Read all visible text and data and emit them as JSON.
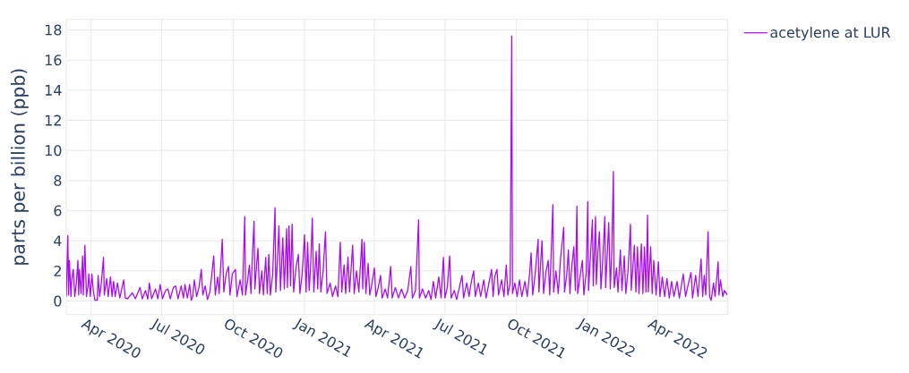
{
  "chart_data": {
    "type": "line",
    "ylabel": "parts per billion (ppb)",
    "x": [
      "2020-02-29",
      "2020-03-02",
      "2020-03-03",
      "2020-03-04",
      "2020-03-06",
      "2020-03-07",
      "2020-03-09",
      "2020-03-11",
      "2020-03-13",
      "2020-03-15",
      "2020-03-16",
      "2020-03-17",
      "2020-03-19",
      "2020-03-21",
      "2020-03-22",
      "2020-03-24",
      "2020-03-26",
      "2020-03-28",
      "2020-03-29",
      "2020-03-31",
      "2020-04-02",
      "2020-04-04",
      "2020-04-06",
      "2020-04-09",
      "2020-04-10",
      "2020-04-12",
      "2020-04-14",
      "2020-04-17",
      "2020-04-18",
      "2020-04-21",
      "2020-04-23",
      "2020-04-26",
      "2020-04-28",
      "2020-04-30",
      "2020-05-02",
      "2020-05-05",
      "2020-05-08",
      "2020-05-13",
      "2020-05-15",
      "2020-05-18",
      "2020-05-24",
      "2020-05-28",
      "2020-06-03",
      "2020-06-06",
      "2020-06-10",
      "2020-06-13",
      "2020-06-15",
      "2020-06-18",
      "2020-06-23",
      "2020-06-26",
      "2020-06-29",
      "2020-07-02",
      "2020-07-06",
      "2020-07-09",
      "2020-07-12",
      "2020-07-16",
      "2020-07-19",
      "2020-07-22",
      "2020-07-26",
      "2020-07-29",
      "2020-07-31",
      "2020-08-03",
      "2020-08-06",
      "2020-08-08",
      "2020-08-10",
      "2020-08-12",
      "2020-08-15",
      "2020-08-18",
      "2020-08-21",
      "2020-08-23",
      "2020-08-26",
      "2020-08-29",
      "2020-09-01",
      "2020-09-03",
      "2020-09-06",
      "2020-09-08",
      "2020-09-11",
      "2020-09-13",
      "2020-09-17",
      "2020-09-19",
      "2020-09-22",
      "2020-09-25",
      "2020-09-27",
      "2020-09-30",
      "2020-10-04",
      "2020-10-06",
      "2020-10-10",
      "2020-10-13",
      "2020-10-16",
      "2020-10-17",
      "2020-10-20",
      "2020-10-22",
      "2020-10-24",
      "2020-10-26",
      "2020-10-28",
      "2020-10-29",
      "2020-10-31",
      "2020-11-02",
      "2020-11-04",
      "2020-11-07",
      "2020-11-09",
      "2020-11-12",
      "2020-11-14",
      "2020-11-16",
      "2020-11-18",
      "2020-11-21",
      "2020-11-24",
      "2020-11-25",
      "2020-11-27",
      "2020-11-29",
      "2020-12-01",
      "2020-12-04",
      "2020-12-06",
      "2020-12-09",
      "2020-12-10",
      "2020-12-12",
      "2020-12-14",
      "2020-12-16",
      "2020-12-18",
      "2020-12-21",
      "2020-12-24",
      "2020-12-26",
      "2020-12-29",
      "2021-01-01",
      "2021-01-03",
      "2021-01-05",
      "2021-01-07",
      "2021-01-09",
      "2021-01-11",
      "2021-01-13",
      "2021-01-16",
      "2021-01-18",
      "2021-01-20",
      "2021-01-22",
      "2021-01-25",
      "2021-01-28",
      "2021-01-30",
      "2021-02-03",
      "2021-02-06",
      "2021-02-10",
      "2021-02-13",
      "2021-02-16",
      "2021-02-18",
      "2021-02-21",
      "2021-02-23",
      "2021-02-26",
      "2021-02-28",
      "2021-03-04",
      "2021-03-06",
      "2021-03-09",
      "2021-03-12",
      "2021-03-16",
      "2021-03-17",
      "2021-03-19",
      "2021-03-21",
      "2021-03-24",
      "2021-03-26",
      "2021-03-29",
      "2021-04-01",
      "2021-04-03",
      "2021-04-06",
      "2021-04-09",
      "2021-04-11",
      "2021-04-15",
      "2021-04-18",
      "2021-04-22",
      "2021-04-24",
      "2021-04-28",
      "2021-05-02",
      "2021-05-06",
      "2021-05-10",
      "2021-05-14",
      "2021-05-18",
      "2021-05-20",
      "2021-05-24",
      "2021-05-28",
      "2021-05-29",
      "2021-06-02",
      "2021-06-06",
      "2021-06-10",
      "2021-06-13",
      "2021-06-16",
      "2021-06-19",
      "2021-06-23",
      "2021-06-26",
      "2021-06-29",
      "2021-07-01",
      "2021-07-04",
      "2021-07-07",
      "2021-07-09",
      "2021-07-13",
      "2021-07-16",
      "2021-07-20",
      "2021-07-23",
      "2021-07-25",
      "2021-07-29",
      "2021-08-01",
      "2021-08-04",
      "2021-08-07",
      "2021-08-09",
      "2021-08-13",
      "2021-08-16",
      "2021-08-20",
      "2021-08-23",
      "2021-08-27",
      "2021-08-30",
      "2021-09-01",
      "2021-09-03",
      "2021-09-06",
      "2021-09-08",
      "2021-09-12",
      "2021-09-15",
      "2021-09-18",
      "2021-09-20",
      "2021-09-23",
      "2021-09-25",
      "2021-09-26",
      "2021-09-29",
      "2021-10-02",
      "2021-10-05",
      "2021-10-08",
      "2021-10-12",
      "2021-10-15",
      "2021-10-18",
      "2021-10-20",
      "2021-10-22",
      "2021-10-25",
      "2021-10-29",
      "2021-10-30",
      "2021-11-03",
      "2021-11-05",
      "2021-11-08",
      "2021-11-11",
      "2021-11-13",
      "2021-11-17",
      "2021-11-18",
      "2021-11-21",
      "2021-11-24",
      "2021-11-27",
      "2021-12-01",
      "2021-12-02",
      "2021-12-05",
      "2021-12-07",
      "2021-12-09",
      "2021-12-11",
      "2021-12-14",
      "2021-12-16",
      "2021-12-18",
      "2021-12-19",
      "2021-12-22",
      "2021-12-25",
      "2021-12-27",
      "2021-12-30",
      "2022-01-01",
      "2022-01-02",
      "2022-01-04",
      "2022-01-07",
      "2022-01-08",
      "2022-01-11",
      "2022-01-12",
      "2022-01-14",
      "2022-01-16",
      "2022-01-18",
      "2022-01-20",
      "2022-01-23",
      "2022-01-24",
      "2022-01-26",
      "2022-01-28",
      "2022-01-30",
      "2022-02-01",
      "2022-02-03",
      "2022-02-04",
      "2022-02-07",
      "2022-02-09",
      "2022-02-12",
      "2022-02-14",
      "2022-02-17",
      "2022-02-19",
      "2022-02-22",
      "2022-02-25",
      "2022-02-26",
      "2022-03-02",
      "2022-03-04",
      "2022-03-06",
      "2022-03-08",
      "2022-03-11",
      "2022-03-13",
      "2022-03-15",
      "2022-03-17",
      "2022-03-19",
      "2022-03-20",
      "2022-03-23",
      "2022-03-25",
      "2022-03-27",
      "2022-03-30",
      "2022-04-02",
      "2022-04-04",
      "2022-04-07",
      "2022-04-10",
      "2022-04-13",
      "2022-04-16",
      "2022-04-19",
      "2022-04-22",
      "2022-04-26",
      "2022-04-29",
      "2022-05-04",
      "2022-05-07",
      "2022-05-10",
      "2022-05-14",
      "2022-05-16",
      "2022-05-20",
      "2022-05-23",
      "2022-05-27",
      "2022-05-29",
      "2022-05-31",
      "2022-06-02",
      "2022-06-05",
      "2022-06-07",
      "2022-06-09",
      "2022-06-12",
      "2022-06-14",
      "2022-06-18",
      "2022-06-19",
      "2022-06-21",
      "2022-06-24",
      "2022-06-26",
      "2022-06-30"
    ],
    "series": [
      {
        "name": "acetylene at LUR",
        "color": "#a70ef0",
        "values": [
          0.3,
          4.35,
          0.4,
          2.7,
          0.3,
          1.4,
          2.1,
          0.3,
          1.2,
          2.7,
          0.4,
          2.1,
          0.5,
          3.0,
          0.4,
          3.7,
          0.3,
          1.0,
          1.8,
          0.3,
          1.8,
          0.6,
          0.05,
          0.05,
          1.7,
          0.3,
          1.1,
          2.9,
          0.4,
          1.5,
          0.3,
          1.6,
          0.3,
          1.3,
          0.3,
          1.2,
          0.2,
          1.4,
          0.2,
          0.15,
          0.55,
          0.15,
          0.9,
          0.15,
          0.7,
          0.12,
          1.2,
          0.15,
          0.8,
          0.15,
          1.1,
          0.15,
          0.7,
          0.8,
          0.15,
          0.9,
          1.0,
          0.15,
          1.0,
          0.2,
          1.1,
          0.2,
          1.1,
          0.05,
          0.3,
          1.4,
          0.3,
          0.9,
          2.1,
          0.4,
          1.0,
          0.1,
          0.6,
          1.5,
          3.0,
          0.4,
          1.6,
          0.5,
          4.1,
          0.6,
          1.8,
          2.3,
          0.4,
          1.8,
          2.1,
          0.3,
          1.4,
          0.4,
          5.6,
          0.4,
          1.5,
          2.4,
          0.5,
          3.2,
          5.3,
          0.8,
          2.2,
          3.5,
          0.5,
          2.0,
          0.4,
          2.9,
          0.5,
          3.1,
          0.4,
          1.8,
          6.2,
          0.6,
          2.6,
          5.0,
          0.7,
          4.2,
          0.8,
          4.8,
          0.9,
          5.0,
          1.0,
          5.1,
          0.6,
          2.2,
          3.1,
          0.5,
          1.8,
          4.4,
          0.6,
          3.9,
          0.7,
          2.5,
          5.5,
          0.6,
          3.3,
          0.8,
          3.8,
          0.6,
          2.0,
          4.6,
          0.5,
          1.2,
          0.3,
          1.0,
          0.3,
          3.9,
          0.6,
          2.4,
          0.5,
          2.9,
          0.6,
          3.7,
          0.5,
          2.0,
          0.6,
          4.1,
          0.8,
          3.9,
          0.5,
          2.5,
          0.4,
          1.2,
          2.2,
          0.3,
          0.9,
          1.7,
          0.2,
          0.8,
          0.2,
          2.3,
          0.2,
          0.9,
          0.2,
          0.8,
          0.2,
          0.7,
          2.3,
          0.2,
          0.7,
          5.4,
          0.2,
          0.8,
          0.2,
          0.7,
          0.1,
          1.3,
          0.2,
          1.6,
          0.2,
          2.9,
          0.2,
          0.9,
          3.0,
          0.2,
          0.7,
          0.1,
          1.0,
          1.7,
          0.2,
          1.2,
          0.3,
          1.3,
          2.0,
          0.3,
          1.2,
          0.3,
          1.4,
          0.2,
          1.3,
          2.1,
          0.3,
          1.6,
          2.1,
          0.4,
          1.4,
          0.3,
          2.4,
          0.4,
          1.2,
          17.6,
          0.5,
          1.2,
          0.3,
          1.4,
          0.3,
          1.3,
          0.3,
          1.8,
          3.2,
          0.4,
          1.7,
          4.1,
          0.6,
          4.0,
          0.5,
          1.9,
          2.7,
          0.4,
          6.4,
          0.6,
          2.0,
          0.5,
          2.9,
          4.9,
          0.6,
          1.8,
          3.4,
          0.5,
          2.1,
          3.6,
          0.7,
          6.3,
          0.5,
          1.6,
          2.7,
          0.4,
          1.9,
          6.6,
          0.7,
          2.6,
          5.4,
          1.0,
          5.6,
          1.1,
          3.2,
          4.6,
          0.8,
          2.5,
          5.6,
          0.9,
          3.0,
          5.2,
          0.8,
          3.4,
          8.6,
          0.9,
          2.2,
          0.6,
          3.4,
          0.7,
          3.0,
          0.5,
          2.1,
          5.1,
          0.7,
          3.7,
          0.6,
          3.6,
          0.5,
          3.8,
          0.5,
          3.6,
          0.6,
          5.7,
          0.6,
          3.6,
          0.5,
          2.7,
          0.4,
          2.6,
          0.3,
          1.6,
          0.3,
          1.5,
          0.2,
          1.3,
          0.3,
          1.3,
          0.2,
          1.8,
          0.3,
          1.0,
          1.9,
          0.2,
          1.7,
          0.3,
          2.8,
          0.3,
          1.7,
          0.4,
          4.6,
          0.3,
          0.05,
          1.2,
          0.3,
          2.6,
          0.4,
          1.4,
          0.3,
          0.7,
          0.4
        ]
      }
    ],
    "xlim": [
      "2020-02-29",
      "2022-06-30"
    ],
    "xticks": [
      {
        "value": "2020-04-01",
        "label": "Apr 2020"
      },
      {
        "value": "2020-07-01",
        "label": "Jul 2020"
      },
      {
        "value": "2020-10-01",
        "label": "Oct 2020"
      },
      {
        "value": "2021-01-01",
        "label": "Jan 2021"
      },
      {
        "value": "2021-04-01",
        "label": "Apr 2021"
      },
      {
        "value": "2021-07-01",
        "label": "Jul 2021"
      },
      {
        "value": "2021-10-01",
        "label": "Oct 2021"
      },
      {
        "value": "2022-01-01",
        "label": "Jan 2022"
      },
      {
        "value": "2022-04-01",
        "label": "Apr 2022"
      }
    ],
    "ylim": [
      -0.9,
      18.7
    ],
    "yticks": [
      0,
      2,
      4,
      6,
      8,
      10,
      12,
      14,
      16,
      18
    ],
    "grid": true,
    "legend": "top right",
    "line_style": "solid"
  }
}
